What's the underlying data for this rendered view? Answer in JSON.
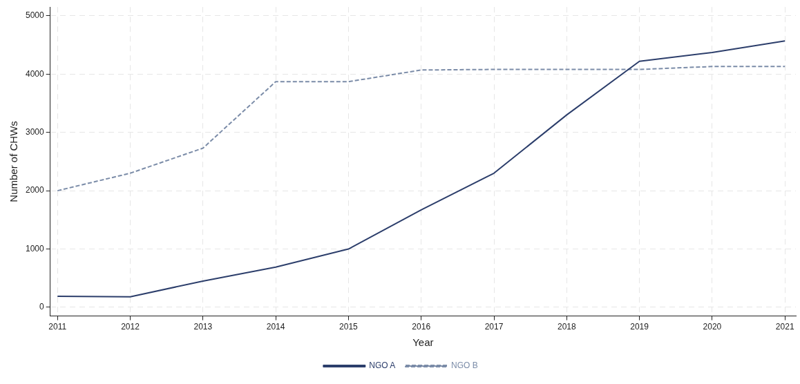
{
  "chart_data": {
    "type": "line",
    "xlabel": "Year",
    "ylabel": "Number of CHWs",
    "x": [
      2011,
      2012,
      2013,
      2014,
      2015,
      2016,
      2017,
      2018,
      2019,
      2020,
      2021
    ],
    "series": [
      {
        "name": "NGO A",
        "color": "#2c3e6b",
        "line_style": "solid",
        "values": [
          190,
          180,
          450,
          690,
          1000,
          1670,
          2300,
          3300,
          4220,
          4370,
          4570
        ]
      },
      {
        "name": "NGO B",
        "color": "#7b8ca8",
        "line_style": "dashed",
        "values": [
          2000,
          2300,
          2730,
          3870,
          3870,
          4070,
          4080,
          4080,
          4080,
          4130,
          4130
        ]
      }
    ],
    "xlim": [
      2010.9,
      2021.15
    ],
    "xticks": [
      2011,
      2012,
      2013,
      2014,
      2015,
      2016,
      2017,
      2018,
      2019,
      2020,
      2021
    ],
    "ylim": [
      -150,
      5150
    ],
    "yticks": [
      0,
      1000,
      2000,
      3000,
      4000,
      5000
    ],
    "grid": true,
    "legend": "bottom",
    "marker": "none"
  }
}
